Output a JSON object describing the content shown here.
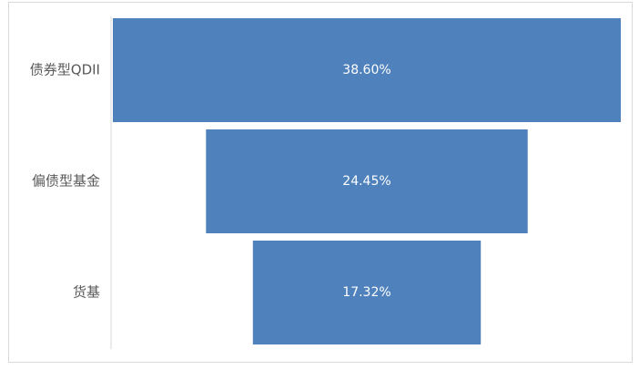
{
  "chart_data": {
    "type": "bar",
    "orientation": "horizontal-funnel",
    "categories": [
      "债券型QDII",
      "偏债型基金",
      "货基"
    ],
    "values": [
      38.6,
      24.45,
      17.32
    ],
    "value_labels": [
      "38.60%",
      "24.45%",
      "17.32%"
    ],
    "unit": "%",
    "title": "",
    "xlabel": "",
    "ylabel": "",
    "grid": false,
    "legend": "none",
    "colors": {
      "bar": "#4f81bd",
      "bar_label": "#ffffff",
      "category_label": "#595959",
      "axis": "#d9d9d9",
      "border": "#d9d9d9"
    }
  }
}
